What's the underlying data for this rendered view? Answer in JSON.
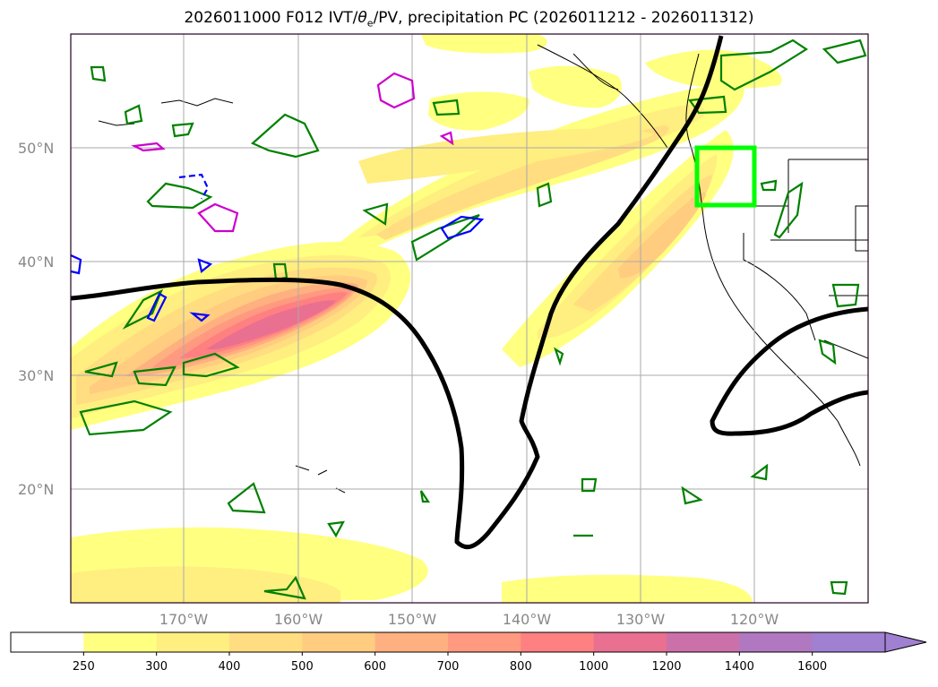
{
  "title": {
    "prefix": "2026011000 F012 IVT/",
    "theta": "θ",
    "theta_sub": "e",
    "suffix": "/PV, precipitation PC (2026011212 - 2026011312)"
  },
  "map": {
    "lat_labels": [
      "50°N",
      "40°N",
      "30°N",
      "20°N"
    ],
    "lon_labels": [
      "170°W",
      "160°W",
      "150°W",
      "140°W",
      "130°W",
      "120°W"
    ],
    "highlight_box": {
      "lon_range": [
        "125°W",
        "120°W"
      ],
      "lat_range": [
        "45°N",
        "50°N"
      ],
      "color": "#00ff00"
    }
  },
  "colorbar": {
    "tick_labels": [
      "250",
      "300",
      "400",
      "500",
      "600",
      "700",
      "800",
      "1000",
      "1200",
      "1400",
      "1600"
    ],
    "colors": [
      "#ffffff",
      "#ffff80",
      "#ffee80",
      "#ffdd80",
      "#ffcc80",
      "#ffb080",
      "#ff9980",
      "#ff8080",
      "#e97090",
      "#cc70aa",
      "#b078c0",
      "#a080d0"
    ],
    "extend": "max"
  },
  "contour_colors": {
    "ivt_fill": "#ffe87a",
    "pv_line": "#000000",
    "precip_green": "#008000",
    "theta_blue": "#0000ff",
    "theta_magenta": "#cc00cc"
  }
}
